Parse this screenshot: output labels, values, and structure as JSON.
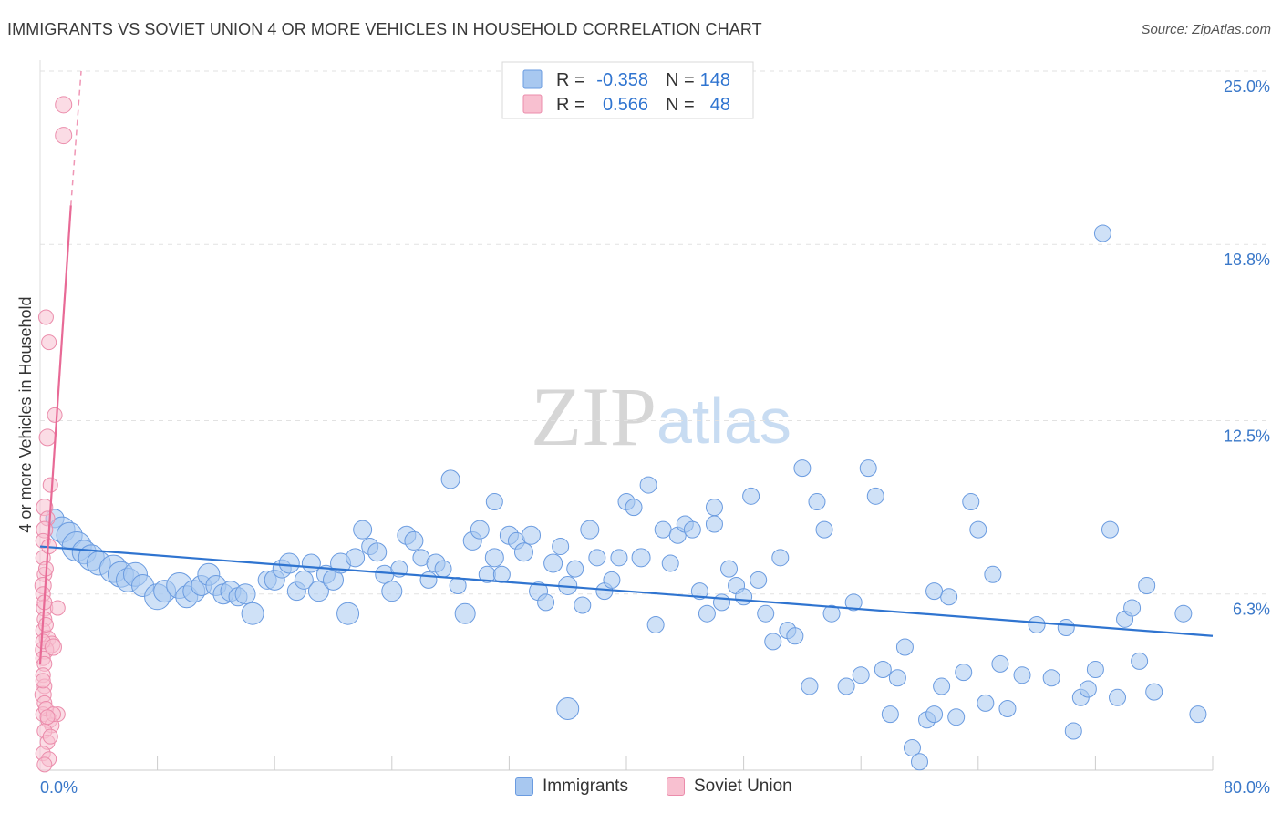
{
  "title": "IMMIGRANTS VS SOVIET UNION 4 OR MORE VEHICLES IN HOUSEHOLD CORRELATION CHART",
  "source": "Source: ZipAtlas.com",
  "watermark": {
    "zip": "ZIP",
    "atlas": "atlas"
  },
  "colors": {
    "blue_fill": "#a8c8f0",
    "blue_stroke": "#6a9be0",
    "blue_line": "#2f74d0",
    "pink_fill": "#f8c0d0",
    "pink_stroke": "#eb8cab",
    "pink_line": "#e86a96",
    "tick_label": "#3a78c9"
  },
  "legend": {
    "rows": [
      {
        "r_label": "R =",
        "r_value": "-0.358",
        "n_label": "N =",
        "n_value": "148"
      },
      {
        "r_label": "R =",
        "r_value": "0.566",
        "n_label": "N =",
        "n_value": "48"
      }
    ]
  },
  "bottom_legend": [
    "Immigrants",
    "Soviet Union"
  ],
  "chart_data": {
    "type": "scatter",
    "xlabel": "",
    "ylabel": "4 or more Vehicles in Household",
    "xlim": [
      0,
      80
    ],
    "ylim": [
      0,
      25
    ],
    "x_tick_labels": [
      "0.0%",
      "80.0%"
    ],
    "y_ticks": [
      6.3,
      12.5,
      18.8,
      25.0
    ],
    "y_tick_labels": [
      "6.3%",
      "12.5%",
      "18.8%",
      "25.0%"
    ],
    "grid": "horizontal dashed",
    "legend_position": "top-center",
    "series": [
      {
        "name": "Immigrants",
        "color": "#a8c8f0",
        "trend": {
          "x": [
            0,
            80
          ],
          "y": [
            8.0,
            4.8
          ]
        },
        "points": [
          [
            1.0,
            9.0,
            10
          ],
          [
            1.5,
            8.6,
            14
          ],
          [
            2.0,
            8.4,
            14
          ],
          [
            2.5,
            8.0,
            16
          ],
          [
            3.0,
            7.8,
            13
          ],
          [
            3.5,
            7.6,
            14
          ],
          [
            4.0,
            7.4,
            13
          ],
          [
            5.0,
            7.2,
            15
          ],
          [
            5.5,
            7.0,
            14
          ],
          [
            6.0,
            6.8,
            13
          ],
          [
            6.5,
            7.0,
            13
          ],
          [
            7.0,
            6.6,
            12
          ],
          [
            8.0,
            6.2,
            14
          ],
          [
            8.5,
            6.4,
            12
          ],
          [
            9.5,
            6.6,
            14
          ],
          [
            10.0,
            6.2,
            12
          ],
          [
            10.5,
            6.4,
            12
          ],
          [
            11.0,
            6.6,
            11
          ],
          [
            11.5,
            7.0,
            12
          ],
          [
            12.0,
            6.6,
            11
          ],
          [
            12.5,
            6.3,
            11
          ],
          [
            13.0,
            6.4,
            11
          ],
          [
            13.5,
            6.2,
            10
          ],
          [
            14.0,
            6.3,
            11
          ],
          [
            14.5,
            5.6,
            12
          ],
          [
            15.5,
            6.8,
            10
          ],
          [
            16.0,
            6.8,
            11
          ],
          [
            16.5,
            7.2,
            10
          ],
          [
            17.0,
            7.4,
            11
          ],
          [
            17.5,
            6.4,
            10
          ],
          [
            18.0,
            6.8,
            10
          ],
          [
            18.5,
            7.4,
            10
          ],
          [
            19.0,
            6.4,
            11
          ],
          [
            19.5,
            7.0,
            10
          ],
          [
            20.0,
            6.8,
            11
          ],
          [
            20.5,
            7.4,
            11
          ],
          [
            21.0,
            5.6,
            12
          ],
          [
            21.5,
            7.6,
            10
          ],
          [
            22.0,
            8.6,
            10
          ],
          [
            22.5,
            8.0,
            9
          ],
          [
            23.0,
            7.8,
            10
          ],
          [
            23.5,
            7.0,
            10
          ],
          [
            24.0,
            6.4,
            11
          ],
          [
            24.5,
            7.2,
            9
          ],
          [
            25.0,
            8.4,
            10
          ],
          [
            25.5,
            8.2,
            10
          ],
          [
            26.0,
            7.6,
            9
          ],
          [
            26.5,
            6.8,
            9
          ],
          [
            27.0,
            7.4,
            10
          ],
          [
            27.5,
            7.2,
            9
          ],
          [
            28.0,
            10.4,
            10
          ],
          [
            28.5,
            6.6,
            9
          ],
          [
            29.0,
            5.6,
            11
          ],
          [
            29.5,
            8.2,
            10
          ],
          [
            30.0,
            8.6,
            10
          ],
          [
            30.5,
            7.0,
            9
          ],
          [
            31.0,
            7.6,
            10
          ],
          [
            31.5,
            7.0,
            9
          ],
          [
            32.0,
            8.4,
            10
          ],
          [
            32.5,
            8.2,
            9
          ],
          [
            33.0,
            7.8,
            10
          ],
          [
            33.5,
            8.4,
            10
          ],
          [
            34.0,
            6.4,
            10
          ],
          [
            34.5,
            6.0,
            9
          ],
          [
            35.0,
            7.4,
            10
          ],
          [
            35.5,
            8.0,
            9
          ],
          [
            36.0,
            6.6,
            10
          ],
          [
            36.5,
            7.2,
            9
          ],
          [
            37.0,
            5.9,
            9
          ],
          [
            37.5,
            8.6,
            10
          ],
          [
            38.0,
            7.6,
            9
          ],
          [
            38.5,
            6.4,
            9
          ],
          [
            39.0,
            6.8,
            9
          ],
          [
            39.5,
            7.6,
            9
          ],
          [
            40.0,
            9.6,
            9
          ],
          [
            40.5,
            9.4,
            9
          ],
          [
            41.0,
            7.6,
            10
          ],
          [
            41.5,
            10.2,
            9
          ],
          [
            42.0,
            5.2,
            9
          ],
          [
            42.5,
            8.6,
            9
          ],
          [
            43.0,
            7.4,
            9
          ],
          [
            43.5,
            8.4,
            9
          ],
          [
            44.0,
            8.8,
            9
          ],
          [
            44.5,
            8.6,
            9
          ],
          [
            45.0,
            6.4,
            9
          ],
          [
            45.5,
            5.6,
            9
          ],
          [
            46.0,
            8.8,
            9
          ],
          [
            46.5,
            6.0,
            9
          ],
          [
            47.0,
            7.2,
            9
          ],
          [
            47.5,
            6.6,
            9
          ],
          [
            48.0,
            6.2,
            9
          ],
          [
            48.5,
            9.8,
            9
          ],
          [
            49.0,
            6.8,
            9
          ],
          [
            49.5,
            5.6,
            9
          ],
          [
            50.0,
            4.6,
            9
          ],
          [
            50.5,
            7.6,
            9
          ],
          [
            51.0,
            5.0,
            9
          ],
          [
            51.5,
            4.8,
            9
          ],
          [
            52.0,
            10.8,
            9
          ],
          [
            52.5,
            3.0,
            9
          ],
          [
            53.0,
            9.6,
            9
          ],
          [
            53.5,
            8.6,
            9
          ],
          [
            54.0,
            5.6,
            9
          ],
          [
            55.0,
            3.0,
            9
          ],
          [
            55.5,
            6.0,
            9
          ],
          [
            56.0,
            3.4,
            9
          ],
          [
            56.5,
            10.8,
            9
          ],
          [
            57.0,
            9.8,
            9
          ],
          [
            57.5,
            3.6,
            9
          ],
          [
            58.0,
            2.0,
            9
          ],
          [
            58.5,
            3.3,
            9
          ],
          [
            59.0,
            4.4,
            9
          ],
          [
            59.5,
            0.8,
            9
          ],
          [
            60.0,
            0.3,
            9
          ],
          [
            60.5,
            1.8,
            9
          ],
          [
            61.0,
            2.0,
            9
          ],
          [
            61.5,
            3.0,
            9
          ],
          [
            62.0,
            6.2,
            9
          ],
          [
            62.5,
            1.9,
            9
          ],
          [
            63.0,
            3.5,
            9
          ],
          [
            63.5,
            9.6,
            9
          ],
          [
            64.0,
            8.6,
            9
          ],
          [
            64.5,
            2.4,
            9
          ],
          [
            65.0,
            7.0,
            9
          ],
          [
            65.5,
            3.8,
            9
          ],
          [
            66.0,
            2.2,
            9
          ],
          [
            67.0,
            3.4,
            9
          ],
          [
            68.0,
            5.2,
            9
          ],
          [
            69.0,
            3.3,
            9
          ],
          [
            70.0,
            5.1,
            9
          ],
          [
            70.5,
            1.4,
            9
          ],
          [
            71.0,
            2.6,
            9
          ],
          [
            71.5,
            2.9,
            9
          ],
          [
            72.0,
            3.6,
            9
          ],
          [
            72.5,
            19.2,
            9
          ],
          [
            73.0,
            8.6,
            9
          ],
          [
            73.5,
            2.6,
            9
          ],
          [
            74.0,
            5.4,
            9
          ],
          [
            74.5,
            5.8,
            9
          ],
          [
            75.0,
            3.9,
            9
          ],
          [
            75.5,
            6.6,
            9
          ],
          [
            76.0,
            2.8,
            9
          ],
          [
            78.0,
            5.6,
            9
          ],
          [
            79.0,
            2.0,
            9
          ],
          [
            36.0,
            2.2,
            12
          ],
          [
            31.0,
            9.6,
            9
          ],
          [
            46.0,
            9.4,
            9
          ],
          [
            61.0,
            6.4,
            9
          ]
        ]
      },
      {
        "name": "Soviet Union",
        "color": "#f8c0d0",
        "trend": {
          "x": [
            0,
            2.1
          ],
          "y": [
            3.8,
            20.2
          ]
        },
        "trend_dashed": {
          "x": [
            2.1,
            2.8
          ],
          "y": [
            20.2,
            25.0
          ]
        },
        "points": [
          [
            1.6,
            23.8,
            9
          ],
          [
            1.6,
            22.7,
            9
          ],
          [
            0.4,
            16.2,
            8
          ],
          [
            0.6,
            15.3,
            8
          ],
          [
            1.0,
            12.7,
            8
          ],
          [
            0.5,
            11.9,
            9
          ],
          [
            0.7,
            10.2,
            8
          ],
          [
            0.3,
            9.4,
            9
          ],
          [
            0.5,
            9.0,
            8
          ],
          [
            0.3,
            8.6,
            9
          ],
          [
            0.2,
            8.2,
            8
          ],
          [
            0.2,
            7.6,
            8
          ],
          [
            0.3,
            7.0,
            8
          ],
          [
            0.2,
            6.6,
            9
          ],
          [
            0.2,
            6.3,
            8
          ],
          [
            0.3,
            5.8,
            9
          ],
          [
            1.2,
            5.8,
            8
          ],
          [
            0.3,
            5.4,
            8
          ],
          [
            0.2,
            5.0,
            8
          ],
          [
            0.5,
            4.7,
            9
          ],
          [
            0.8,
            4.5,
            9
          ],
          [
            0.3,
            4.3,
            10
          ],
          [
            0.2,
            4.0,
            8
          ],
          [
            0.3,
            3.8,
            8
          ],
          [
            0.2,
            3.4,
            8
          ],
          [
            0.3,
            3.0,
            8
          ],
          [
            0.2,
            2.7,
            9
          ],
          [
            0.3,
            2.4,
            8
          ],
          [
            0.2,
            2.0,
            8
          ],
          [
            0.6,
            1.8,
            9
          ],
          [
            1.2,
            2.0,
            8
          ],
          [
            0.8,
            1.6,
            8
          ],
          [
            0.3,
            1.4,
            8
          ],
          [
            0.5,
            1.0,
            8
          ],
          [
            0.2,
            0.6,
            8
          ],
          [
            0.6,
            0.4,
            8
          ],
          [
            0.4,
            2.2,
            8
          ],
          [
            0.9,
            2.0,
            8
          ],
          [
            0.2,
            4.6,
            8
          ],
          [
            0.4,
            5.2,
            8
          ],
          [
            0.3,
            6.0,
            8
          ],
          [
            0.4,
            7.2,
            8
          ],
          [
            0.6,
            8.0,
            8
          ],
          [
            0.2,
            3.2,
            8
          ],
          [
            0.7,
            1.2,
            8
          ],
          [
            0.3,
            0.2,
            8
          ],
          [
            0.5,
            1.9,
            8
          ],
          [
            0.9,
            4.4,
            9
          ]
        ]
      }
    ]
  }
}
